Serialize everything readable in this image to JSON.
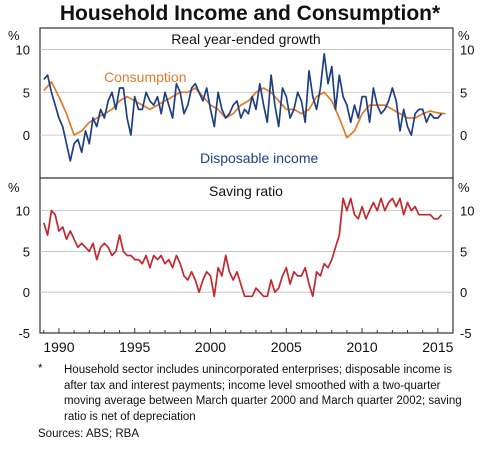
{
  "title": "Household Income and Consumption*",
  "colors": {
    "consumption": "#e07a2b",
    "disposable": "#1f3f84",
    "saving": "#c0282e",
    "frame": "#333333",
    "grid": "#bfbfbf"
  },
  "footnote": {
    "marker": "*",
    "text": "Household sector includes unincorporated enterprises; disposable income is after tax and interest payments; income level smoothed with a two-quarter moving average between March quarter 2000 and March quarter 2002; saving ratio is net of depreciation"
  },
  "sources": "Sources: ABS; RBA",
  "chart_data": [
    {
      "type": "line",
      "title": "Real year-ended growth",
      "unit_left": "%",
      "unit_right": "%",
      "ylim": [
        -5,
        12.5
      ],
      "yticks": [
        10,
        5,
        0
      ],
      "xlim": [
        1988.75,
        2016.0
      ],
      "grid": true,
      "series": [
        {
          "name": "Consumption",
          "color": "#e07a2b",
          "x": [
            1989.0,
            1989.5,
            1990.0,
            1990.5,
            1991.0,
            1991.5,
            1992.0,
            1992.5,
            1993.0,
            1993.5,
            1994.0,
            1994.5,
            1995.0,
            1995.5,
            1996.0,
            1996.5,
            1997.0,
            1997.5,
            1998.0,
            1998.5,
            1999.0,
            1999.5,
            2000.0,
            2000.5,
            2001.0,
            2001.5,
            2002.0,
            2002.5,
            2003.0,
            2003.5,
            2004.0,
            2004.5,
            2005.0,
            2005.5,
            2006.0,
            2006.5,
            2007.0,
            2007.5,
            2008.0,
            2008.5,
            2009.0,
            2009.5,
            2010.0,
            2010.5,
            2011.0,
            2011.5,
            2012.0,
            2012.5,
            2013.0,
            2013.5,
            2014.0,
            2014.5,
            2015.0,
            2015.5
          ],
          "values": [
            5.2,
            6.2,
            4.5,
            2.5,
            0.0,
            0.5,
            1.5,
            2.0,
            2.5,
            3.0,
            4.0,
            4.5,
            4.0,
            3.5,
            3.0,
            3.5,
            4.0,
            4.5,
            5.0,
            5.0,
            5.5,
            4.5,
            3.5,
            3.0,
            2.0,
            2.5,
            3.5,
            4.0,
            5.0,
            5.5,
            5.0,
            4.0,
            3.0,
            3.0,
            2.5,
            3.0,
            4.5,
            5.0,
            4.0,
            2.0,
            -0.3,
            0.5,
            2.5,
            3.5,
            3.5,
            3.5,
            3.0,
            2.5,
            2.0,
            2.0,
            2.5,
            2.8,
            2.6,
            2.5
          ]
        },
        {
          "name": "Disposable income",
          "color": "#1f3f84",
          "x": [
            1989.0,
            1989.25,
            1989.5,
            1989.75,
            1990.0,
            1990.25,
            1990.5,
            1990.75,
            1991.0,
            1991.25,
            1991.5,
            1991.75,
            1992.0,
            1992.25,
            1992.5,
            1992.75,
            1993.0,
            1993.25,
            1993.5,
            1993.75,
            1994.0,
            1994.25,
            1994.5,
            1994.75,
            1995.0,
            1995.25,
            1995.5,
            1995.75,
            1996.0,
            1996.25,
            1996.5,
            1996.75,
            1997.0,
            1997.25,
            1997.5,
            1997.75,
            1998.0,
            1998.25,
            1998.5,
            1998.75,
            1999.0,
            1999.25,
            1999.5,
            1999.75,
            2000.0,
            2000.25,
            2000.5,
            2000.75,
            2001.0,
            2001.25,
            2001.5,
            2001.75,
            2002.0,
            2002.25,
            2002.5,
            2002.75,
            2003.0,
            2003.25,
            2003.5,
            2003.75,
            2004.0,
            2004.25,
            2004.5,
            2004.75,
            2005.0,
            2005.25,
            2005.5,
            2005.75,
            2006.0,
            2006.25,
            2006.5,
            2006.75,
            2007.0,
            2007.25,
            2007.5,
            2007.75,
            2008.0,
            2008.25,
            2008.5,
            2008.75,
            2009.0,
            2009.25,
            2009.5,
            2009.75,
            2010.0,
            2010.25,
            2010.5,
            2010.75,
            2011.0,
            2011.25,
            2011.5,
            2011.75,
            2012.0,
            2012.25,
            2012.5,
            2012.75,
            2013.0,
            2013.25,
            2013.5,
            2013.75,
            2014.0,
            2014.25,
            2014.5,
            2014.75,
            2015.0,
            2015.25
          ],
          "values": [
            6.5,
            7.0,
            5.0,
            3.5,
            2.0,
            1.0,
            -1.0,
            -3.0,
            -1.0,
            -0.5,
            -2.0,
            0.5,
            -1.0,
            2.0,
            1.0,
            3.0,
            2.0,
            4.0,
            5.0,
            3.0,
            5.5,
            5.5,
            2.0,
            0.0,
            4.5,
            3.0,
            3.0,
            5.0,
            4.0,
            3.5,
            4.5,
            2.5,
            5.0,
            3.5,
            2.0,
            6.0,
            5.0,
            2.5,
            3.5,
            5.5,
            6.0,
            5.0,
            4.0,
            5.5,
            3.0,
            1.0,
            5.0,
            3.0,
            2.0,
            2.5,
            3.5,
            4.0,
            2.0,
            3.0,
            2.5,
            4.5,
            3.0,
            6.0,
            3.5,
            1.5,
            7.0,
            3.5,
            1.0,
            5.5,
            4.5,
            2.0,
            3.0,
            5.0,
            4.0,
            1.5,
            7.5,
            4.5,
            3.0,
            5.5,
            9.5,
            6.0,
            8.0,
            3.0,
            7.0,
            4.5,
            3.5,
            1.5,
            3.5,
            2.0,
            4.5,
            4.5,
            1.5,
            5.5,
            3.5,
            2.5,
            3.0,
            4.0,
            5.5,
            4.0,
            0.5,
            3.0,
            1.0,
            0.0,
            2.5,
            3.0,
            3.0,
            1.5,
            2.5,
            2.0,
            2.0,
            2.5
          ]
        }
      ],
      "annotations": [
        {
          "text": "Consumption",
          "color": "#e07a2b"
        },
        {
          "text": "Disposable income",
          "color": "#1f3f84"
        }
      ]
    },
    {
      "type": "line",
      "title": "Saving ratio",
      "unit_left": "%",
      "unit_right": "%",
      "ylim": [
        -5,
        14
      ],
      "yticks": [
        10,
        5,
        0,
        -5
      ],
      "xlim": [
        1988.75,
        2016.0
      ],
      "xticks": [
        1990,
        1995,
        2000,
        2005,
        2010,
        2015
      ],
      "grid": true,
      "series": [
        {
          "name": "Saving ratio",
          "color": "#c0282e",
          "x": [
            1989.0,
            1989.25,
            1989.5,
            1989.75,
            1990.0,
            1990.25,
            1990.5,
            1990.75,
            1991.0,
            1991.25,
            1991.5,
            1991.75,
            1992.0,
            1992.25,
            1992.5,
            1992.75,
            1993.0,
            1993.25,
            1993.5,
            1993.75,
            1994.0,
            1994.25,
            1994.5,
            1994.75,
            1995.0,
            1995.25,
            1995.5,
            1995.75,
            1996.0,
            1996.25,
            1996.5,
            1996.75,
            1997.0,
            1997.25,
            1997.5,
            1997.75,
            1998.0,
            1998.25,
            1998.5,
            1998.75,
            1999.0,
            1999.25,
            1999.5,
            1999.75,
            2000.0,
            2000.25,
            2000.5,
            2000.75,
            2001.0,
            2001.25,
            2001.5,
            2001.75,
            2002.0,
            2002.25,
            2002.5,
            2002.75,
            2003.0,
            2003.25,
            2003.5,
            2003.75,
            2004.0,
            2004.25,
            2004.5,
            2004.75,
            2005.0,
            2005.25,
            2005.5,
            2005.75,
            2006.0,
            2006.25,
            2006.5,
            2006.75,
            2007.0,
            2007.25,
            2007.5,
            2007.75,
            2008.0,
            2008.25,
            2008.5,
            2008.75,
            2009.0,
            2009.25,
            2009.5,
            2009.75,
            2010.0,
            2010.25,
            2010.5,
            2010.75,
            2011.0,
            2011.25,
            2011.5,
            2011.75,
            2012.0,
            2012.25,
            2012.5,
            2012.75,
            2013.0,
            2013.25,
            2013.5,
            2013.75,
            2014.0,
            2014.25,
            2014.5,
            2014.75,
            2015.0,
            2015.25
          ],
          "values": [
            8.5,
            7.0,
            10.0,
            9.5,
            7.5,
            8.0,
            6.5,
            7.5,
            6.5,
            5.5,
            6.0,
            5.5,
            5.0,
            6.0,
            4.0,
            5.5,
            6.0,
            5.5,
            4.5,
            5.0,
            7.0,
            5.0,
            4.5,
            4.5,
            4.0,
            4.0,
            3.5,
            4.5,
            3.0,
            4.5,
            4.0,
            4.5,
            3.5,
            4.0,
            3.0,
            4.5,
            3.5,
            2.0,
            1.5,
            2.5,
            1.5,
            0.0,
            1.5,
            2.5,
            2.0,
            -0.5,
            3.0,
            2.0,
            4.5,
            2.5,
            1.5,
            2.5,
            1.0,
            -0.5,
            -0.5,
            -0.5,
            0.5,
            0.0,
            -0.5,
            -0.5,
            1.5,
            0.0,
            0.5,
            2.0,
            3.0,
            1.0,
            2.5,
            2.0,
            2.0,
            3.0,
            1.0,
            -0.5,
            2.5,
            2.0,
            3.5,
            3.0,
            4.0,
            5.5,
            7.0,
            11.5,
            10.0,
            11.5,
            9.5,
            9.0,
            10.5,
            9.0,
            10.0,
            11.0,
            10.0,
            11.5,
            10.0,
            11.0,
            11.5,
            10.5,
            11.5,
            9.5,
            11.0,
            10.0,
            10.5,
            9.5,
            9.5,
            9.5,
            9.5,
            9.0,
            9.0,
            9.5
          ]
        }
      ]
    }
  ]
}
